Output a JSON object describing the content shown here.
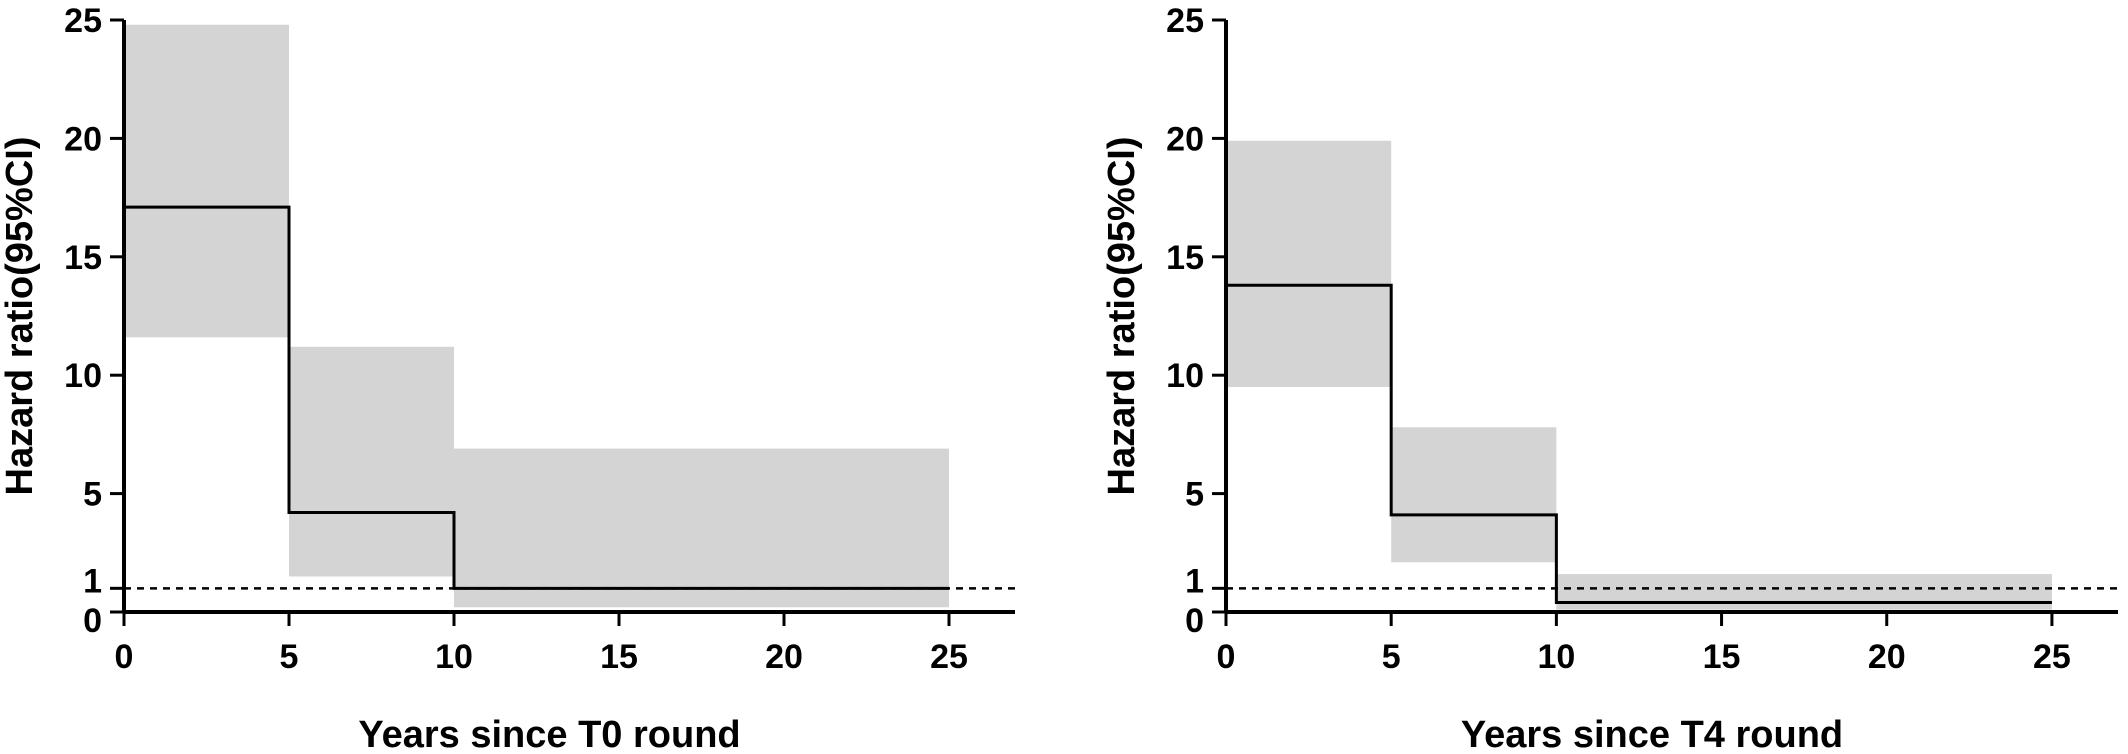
{
  "colors": {
    "ci_band": "#d4d4d4",
    "estimate_line": "#000000",
    "reference_line": "#000000",
    "axis": "#000000"
  },
  "chart_data": [
    {
      "type": "step",
      "xlabel": "Years since T0 round",
      "ylabel": "Hazard ratio(95%CI)",
      "xlim": [
        0,
        27
      ],
      "ylim": [
        0,
        25
      ],
      "x_ticks": [
        0,
        5,
        10,
        15,
        20,
        25
      ],
      "y_ticks": [
        0,
        1,
        5,
        10,
        15,
        20,
        25
      ],
      "reference_line": 1,
      "grid": false,
      "legend": "none",
      "intervals": [
        {
          "x_start": 0,
          "x_end": 5,
          "hr": 17.1,
          "ci_low": 11.6,
          "ci_high": 24.8
        },
        {
          "x_start": 5,
          "x_end": 10,
          "hr": 4.2,
          "ci_low": 1.5,
          "ci_high": 11.2
        },
        {
          "x_start": 10,
          "x_end": 25,
          "hr": 1.0,
          "ci_low": 0.2,
          "ci_high": 6.9
        }
      ]
    },
    {
      "type": "step",
      "xlabel": "Years since T4 round",
      "ylabel": "Hazard ratio(95%CI)",
      "xlim": [
        0,
        27
      ],
      "ylim": [
        0,
        25
      ],
      "x_ticks": [
        0,
        5,
        10,
        15,
        20,
        25
      ],
      "y_ticks": [
        0,
        1,
        5,
        10,
        15,
        20,
        25
      ],
      "reference_line": 1,
      "grid": false,
      "legend": "none",
      "intervals": [
        {
          "x_start": 0,
          "x_end": 5,
          "hr": 13.8,
          "ci_low": 9.5,
          "ci_high": 19.9
        },
        {
          "x_start": 5,
          "x_end": 10,
          "hr": 4.1,
          "ci_low": 2.1,
          "ci_high": 7.8
        },
        {
          "x_start": 10,
          "x_end": 25,
          "hr": 0.4,
          "ci_low": 0.1,
          "ci_high": 1.6
        }
      ]
    }
  ]
}
